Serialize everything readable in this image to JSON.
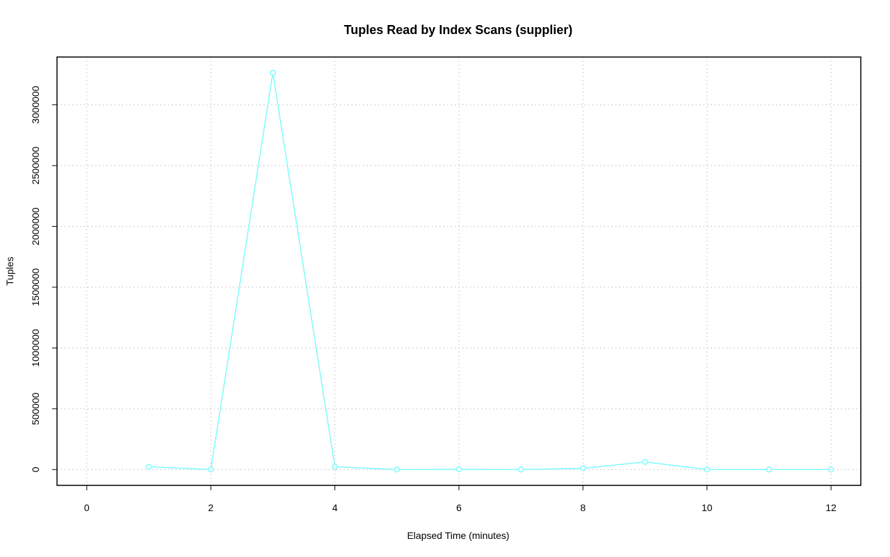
{
  "chart_data": {
    "type": "line",
    "title": "Tuples Read by Index Scans (supplier)",
    "x_label": "Elapsed Time (minutes)",
    "y_label": "Tuples",
    "x": [
      1,
      2,
      3,
      4,
      5,
      6,
      7,
      8,
      9,
      10,
      11,
      12
    ],
    "series": [
      {
        "name": "supplier",
        "color": "#7ffbfb",
        "values": [
          23000,
          0,
          3263000,
          23000,
          0,
          2000,
          0,
          10000,
          63000,
          0,
          0,
          0
        ]
      }
    ],
    "xlim": [
      -0.48,
      12.48
    ],
    "xticks": [
      0,
      2,
      4,
      6,
      8,
      10,
      12
    ],
    "ylim": [
      -130000,
      3393000
    ],
    "yticks": [
      0,
      500000,
      1000000,
      1500000,
      2000000,
      2500000,
      3000000
    ],
    "grid": true
  }
}
